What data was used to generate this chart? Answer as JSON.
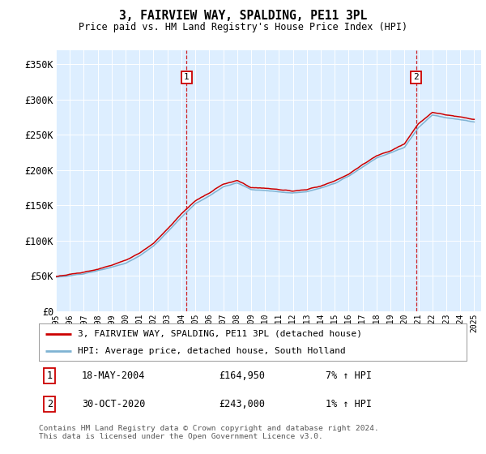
{
  "title": "3, FAIRVIEW WAY, SPALDING, PE11 3PL",
  "subtitle": "Price paid vs. HM Land Registry's House Price Index (HPI)",
  "legend_line1": "3, FAIRVIEW WAY, SPALDING, PE11 3PL (detached house)",
  "legend_line2": "HPI: Average price, detached house, South Holland",
  "annotation1_label": "1",
  "annotation1_date": "18-MAY-2004",
  "annotation1_price": "£164,950",
  "annotation1_hpi": "7% ↑ HPI",
  "annotation1_year": 2004.38,
  "annotation2_label": "2",
  "annotation2_date": "30-OCT-2020",
  "annotation2_price": "£243,000",
  "annotation2_hpi": "1% ↑ HPI",
  "annotation2_year": 2020.83,
  "ylabel_ticks": [
    "£0",
    "£50K",
    "£100K",
    "£150K",
    "£200K",
    "£250K",
    "£300K",
    "£350K"
  ],
  "ytick_values": [
    0,
    50000,
    100000,
    150000,
    200000,
    250000,
    300000,
    350000
  ],
  "ylim": [
    0,
    370000
  ],
  "xlim_start": 1995.0,
  "xlim_end": 2025.5,
  "background_color": "#ddeeff",
  "footer": "Contains HM Land Registry data © Crown copyright and database right 2024.\nThis data is licensed under the Open Government Licence v3.0.",
  "red_color": "#cc0000",
  "blue_color": "#7fb3d3",
  "hpi_base": [
    48000,
    50000,
    53000,
    57000,
    62000,
    68000,
    78000,
    92000,
    112000,
    133000,
    152000,
    163000,
    176000,
    182000,
    172000,
    171000,
    169000,
    167000,
    169000,
    174000,
    181000,
    191000,
    204000,
    217000,
    224000,
    232000,
    260000,
    278000,
    274000,
    271000,
    268000
  ],
  "price_base": [
    49000,
    52000,
    55000,
    59000,
    65000,
    72000,
    82000,
    96000,
    116000,
    138000,
    156000,
    167000,
    180000,
    185000,
    175000,
    174000,
    172000,
    170000,
    172000,
    177000,
    184000,
    194000,
    207000,
    220000,
    227000,
    237000,
    265000,
    282000,
    278000,
    275000,
    272000
  ]
}
